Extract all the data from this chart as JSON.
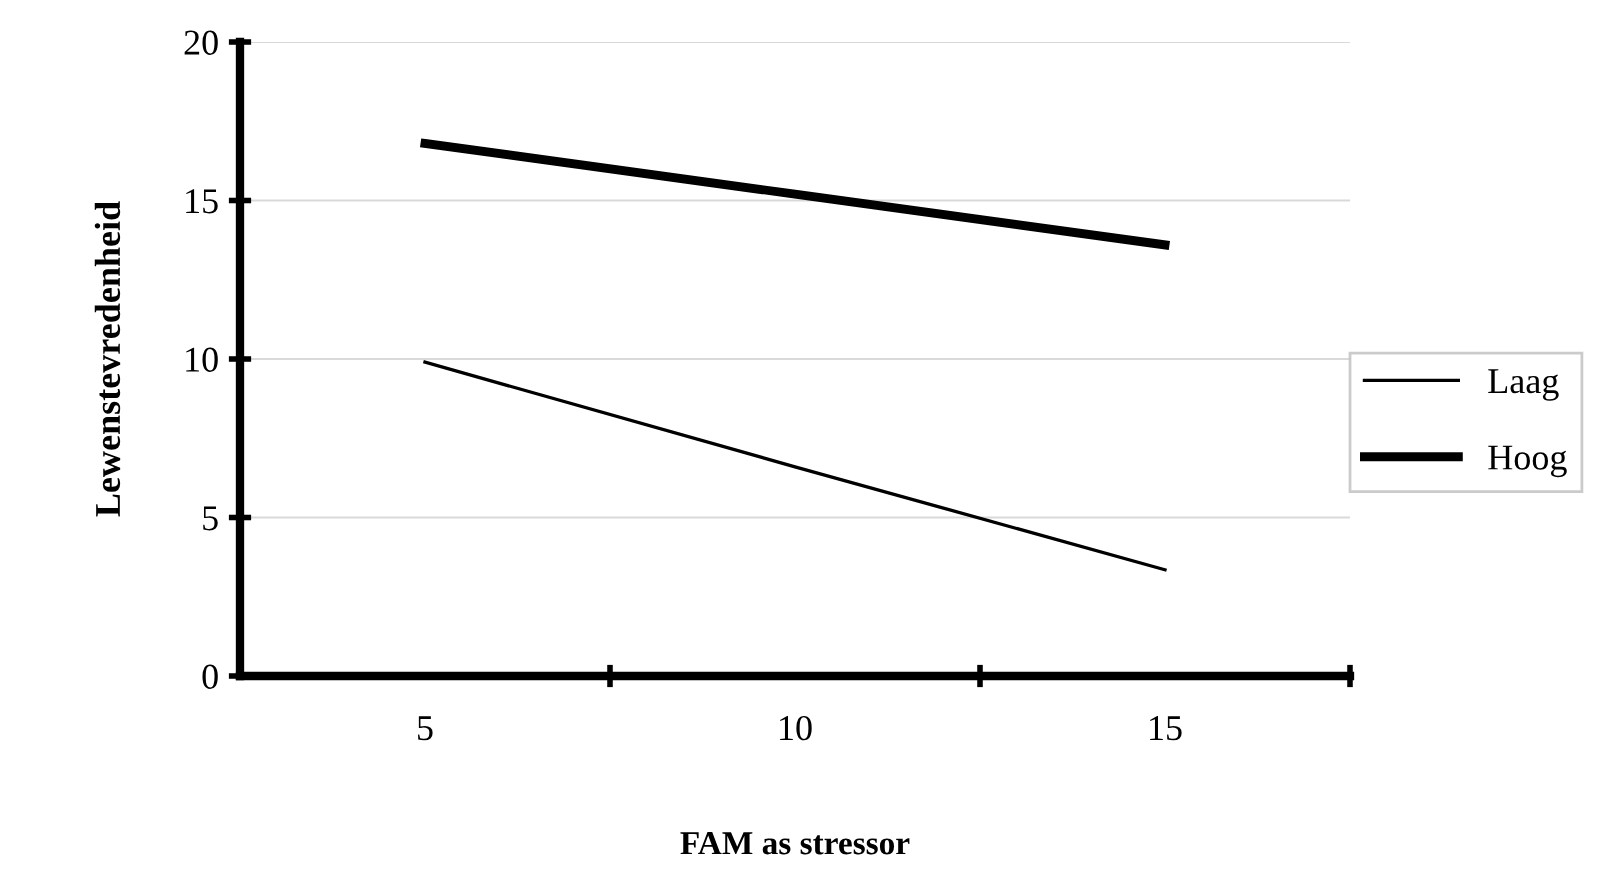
{
  "chart_data": {
    "type": "line",
    "xlabel": "FAM as stressor",
    "ylabel": "Lewenstevredenheid",
    "categories": [
      "5",
      "10",
      "15"
    ],
    "series": [
      {
        "name": "Laag",
        "color": "#000000",
        "values": [
          9.9,
          6.6,
          3.35
        ]
      },
      {
        "name": "Hoog",
        "color": "#000000",
        "values": [
          16.8,
          15.2,
          13.6
        ]
      }
    ],
    "ylim": [
      0,
      20
    ],
    "yticks": [
      0,
      5,
      10,
      15,
      20
    ],
    "grid": "y",
    "legend": "right",
    "marker": "none",
    "line_style": "solid"
  }
}
